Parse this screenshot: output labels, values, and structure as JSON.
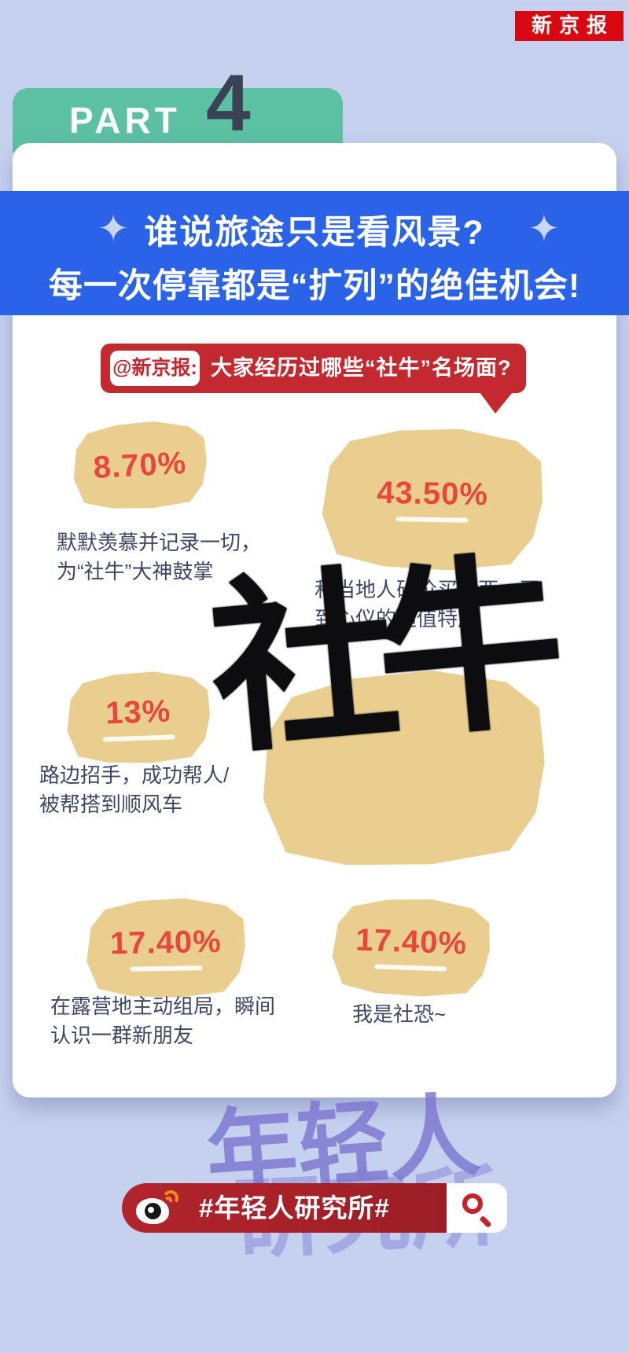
{
  "brand": {
    "logo": "新京报"
  },
  "part_header": {
    "label": "PART",
    "number": "4"
  },
  "headline": {
    "line1": "谁说旅途只是看风景?",
    "line2": "每一次停靠都是“扩列”的绝佳机会!"
  },
  "question": {
    "handle": "@新京报:",
    "text": "大家经历过哪些“社牛”名场面?"
  },
  "calligraphy": "社牛",
  "stats": [
    {
      "value": "8.70%",
      "caption": "默默羡慕并记录一切，\n为“社牛”大神鼓掌"
    },
    {
      "value": "43.50%",
      "caption": "和当地人砍价买东西，买\n到心仪的超值特产"
    },
    {
      "value": "13%",
      "caption": "路边招手，成功帮人/\n被帮搭到顺风车"
    },
    {
      "value": "17.40%",
      "caption": "在露营地主动组局，瞬间\n认识一群新朋友"
    },
    {
      "value": "17.40%",
      "caption": "我是社恐~"
    }
  ],
  "footer": {
    "hashtag": "#年轻人研究所#",
    "watermark_line1": "年轻人",
    "watermark_line2": "研究所"
  },
  "icons": {
    "sparkle": "✦"
  },
  "colors": {
    "background": "#C6D1EF",
    "banner_blue": "#2A63E8",
    "teal": "#5CC0A3",
    "navy": "#3B4255",
    "bubble_red": "#C22A30",
    "footer_red": "#A6212A",
    "badge_red": "#D90710",
    "percent_red": "#E8483B",
    "tan_blob": "#EACE8F",
    "watermark_purple": "#8079D2"
  },
  "chart_data": {
    "type": "table",
    "title": "大家经历过哪些“社牛”名场面?",
    "categories": [
      "默默羡慕并记录一切，为“社牛”大神鼓掌",
      "和当地人砍价买东西，买到心仪的超值特产",
      "路边招手，成功帮人/被帮搭到顺风车",
      "在露营地主动组局，瞬间认识一群新朋友",
      "我是社恐~"
    ],
    "values": [
      8.7,
      43.5,
      13,
      17.4,
      17.4
    ],
    "unit": "%",
    "value_labels": [
      "8.70%",
      "43.50%",
      "13%",
      "17.40%",
      "17.40%"
    ]
  }
}
